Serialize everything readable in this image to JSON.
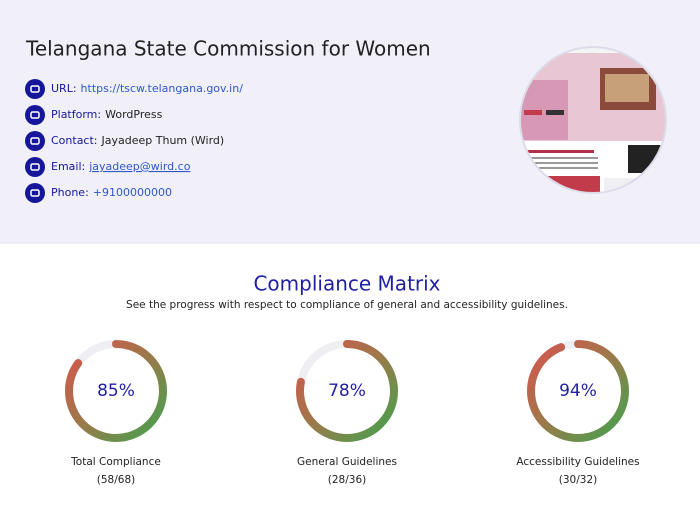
{
  "header": {
    "title": "Telangana State Commission for Women",
    "items": [
      {
        "label": "URL:",
        "value": "https://tscw.telangana.gov.in/",
        "link": true
      },
      {
        "label": "Platform:",
        "value": "WordPress",
        "link": false
      },
      {
        "label": "Contact:",
        "value": "Jayadeep Thum (Wird)",
        "link": false
      },
      {
        "label": "Email:",
        "value": "jayadeep@wird.co",
        "link": true
      },
      {
        "label": "Phone:",
        "value": "+9100000000",
        "link": true
      }
    ]
  },
  "compliance": {
    "title": "Compliance Matrix",
    "subtitle": "See the progress with respect to compliance of general and accessibility guidelines.",
    "gauges": [
      {
        "value": 85,
        "value_label": "85%",
        "label": "Total Compliance",
        "detail": "(58/68)"
      },
      {
        "value": 78,
        "value_label": "78%",
        "label": "General Guidelines",
        "detail": "(28/36)"
      },
      {
        "value": 94,
        "value_label": "94%",
        "label": "Accessibility Guidelines",
        "detail": "(30/32)"
      }
    ]
  }
}
